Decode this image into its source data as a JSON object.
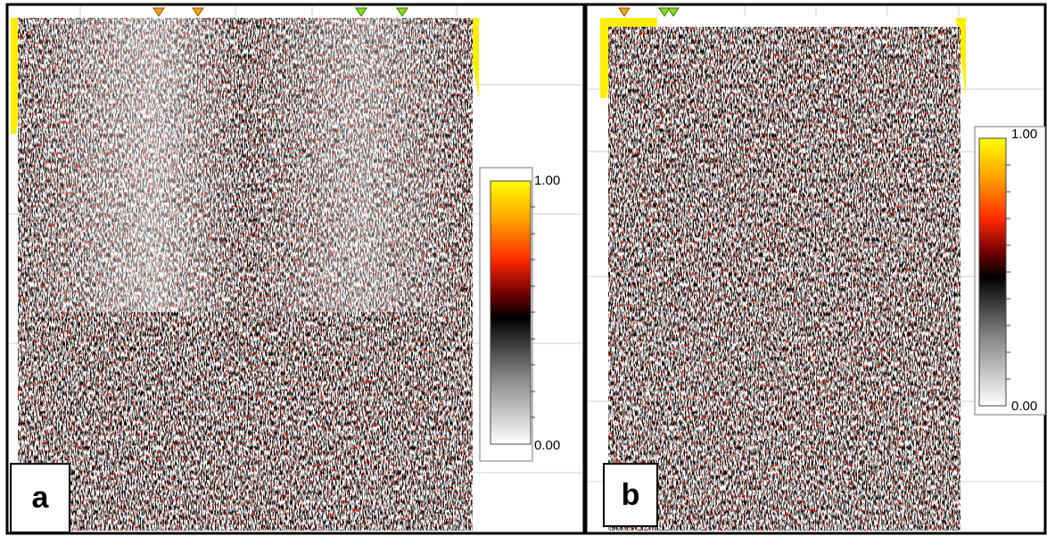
{
  "panels": [
    {
      "label": "a",
      "colorbar": {
        "max": "1.00",
        "min": "0.00"
      }
    },
    {
      "label": "b",
      "colorbar": {
        "max": "1.00",
        "min": "0.00"
      }
    }
  ]
}
